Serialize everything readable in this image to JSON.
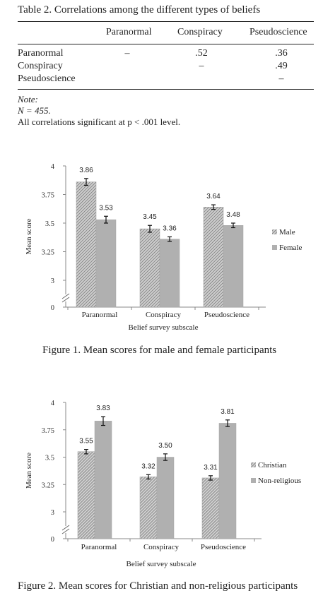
{
  "table": {
    "caption": "Table 2.  Correlations among the different types of beliefs",
    "col_headers": [
      "Paranormal",
      "Conspiracy",
      "Pseudoscience"
    ],
    "rows": [
      {
        "label": "Paranormal",
        "cells": [
          "–",
          ".52",
          ".36"
        ]
      },
      {
        "label": "Conspiracy",
        "cells": [
          "",
          "–",
          ".49"
        ]
      },
      {
        "label": "Pseudoscience",
        "cells": [
          "",
          "",
          "–"
        ]
      }
    ],
    "note_label": "Note:",
    "note_n": "N = 455.",
    "note_text": "All correlations significant at p < .001 level."
  },
  "chart_data": [
    {
      "type": "bar",
      "categories": [
        "Paranormal",
        "Conspiracy",
        "Pseudoscience"
      ],
      "series": [
        {
          "name": "Male",
          "values": [
            3.86,
            3.45,
            3.64
          ],
          "data_labels": [
            "3.86",
            "3.45",
            "3.64"
          ],
          "errors": [
            0.03,
            0.03,
            0.02
          ],
          "color": "#8a8a8a",
          "pattern": "hatch"
        },
        {
          "name": "Female",
          "values": [
            3.53,
            3.36,
            3.48
          ],
          "data_labels": [
            "3.53",
            "3.36",
            "3.48"
          ],
          "errors": [
            0.03,
            0.02,
            0.02
          ],
          "color": "#b0b0b0",
          "pattern": "solid"
        }
      ],
      "title": "",
      "caption": "Figure 1.  Mean scores for male and female participants",
      "xlabel": "Belief survey subscale",
      "ylabel": "Mean score",
      "yticks": [
        "4",
        "3.75",
        "3.5",
        "3.25",
        "3",
        "0"
      ],
      "ylim": [
        3,
        4
      ],
      "axis_break": true,
      "legend": "right"
    },
    {
      "type": "bar",
      "categories": [
        "Paranormal",
        "Conspiracy",
        "Pseudoscience"
      ],
      "series": [
        {
          "name": "Christian",
          "values": [
            3.55,
            3.32,
            3.31
          ],
          "data_labels": [
            "3.55",
            "3.32",
            "3.31"
          ],
          "errors": [
            0.02,
            0.02,
            0.02
          ],
          "color": "#8a8a8a",
          "pattern": "hatch"
        },
        {
          "name": "Non-religious",
          "values": [
            3.83,
            3.5,
            3.81
          ],
          "data_labels": [
            "3.83",
            "3.50",
            "3.81"
          ],
          "errors": [
            0.04,
            0.03,
            0.03
          ],
          "color": "#b0b0b0",
          "pattern": "solid"
        }
      ],
      "title": "",
      "caption": "Figure 2.  Mean scores for Christian and non-religious participants",
      "xlabel": "Belief survey subscale",
      "ylabel": "Mean score",
      "yticks": [
        "4",
        "3.75",
        "3.5",
        "3.25",
        "3",
        "0"
      ],
      "ylim": [
        3,
        4
      ],
      "axis_break": true,
      "legend": "right"
    }
  ]
}
